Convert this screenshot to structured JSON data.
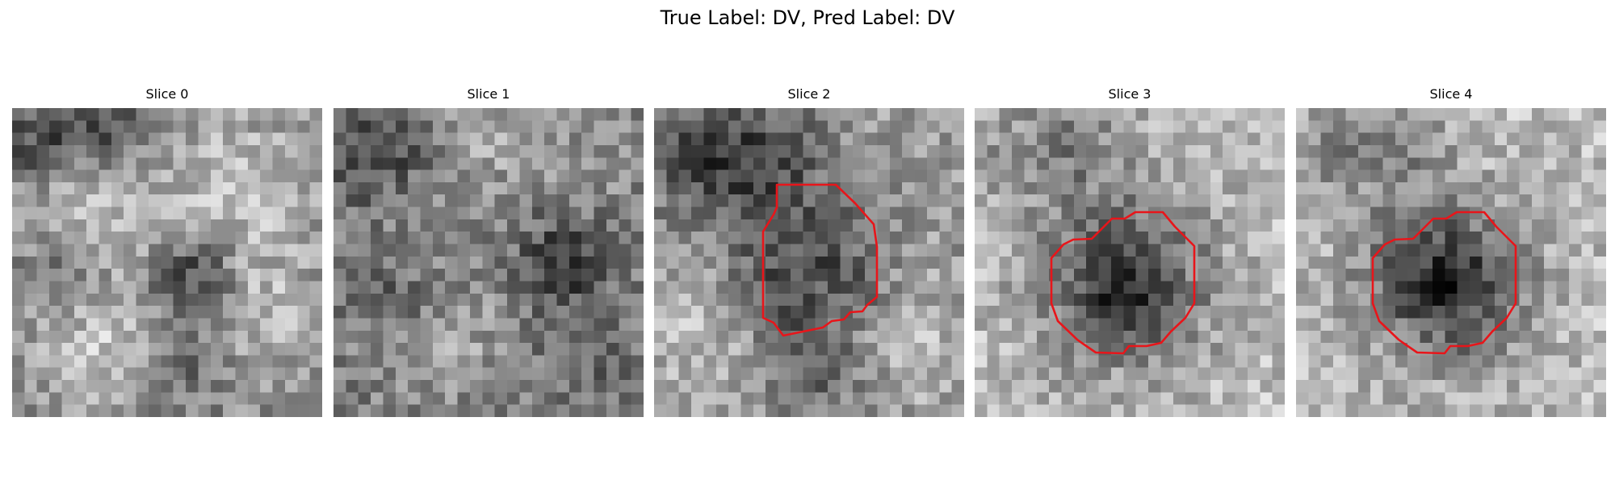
{
  "figure": {
    "title": "True Label: DV, Pred Label: DV"
  },
  "slices": [
    {
      "title": "Slice 0",
      "has_contour": false
    },
    {
      "title": "Slice 1",
      "has_contour": false
    },
    {
      "title": "Slice 2",
      "has_contour": true
    },
    {
      "title": "Slice 3",
      "has_contour": true
    },
    {
      "title": "Slice 4",
      "has_contour": true
    }
  ],
  "style": {
    "colormap": "grayscale",
    "contour_color": "#e8151a",
    "background": "#ffffff"
  }
}
